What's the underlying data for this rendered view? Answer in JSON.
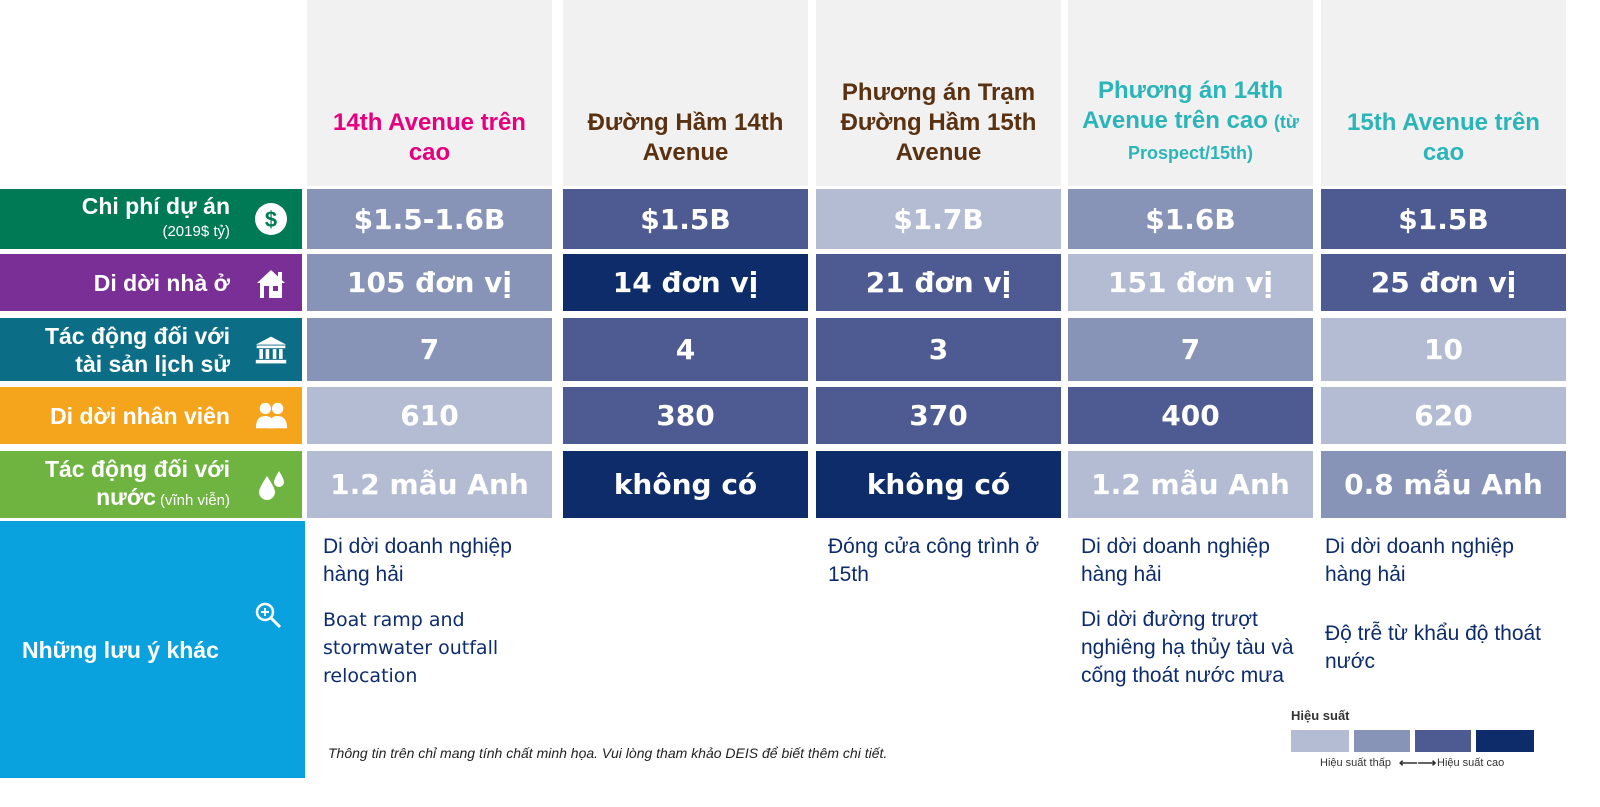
{
  "columns": [
    {
      "title": "14th Avenue trên cao",
      "sub": "",
      "color": "#e6007e"
    },
    {
      "title": "Đường Hầm 14th Avenue",
      "sub": "",
      "color": "#5a3211"
    },
    {
      "title": "Phương án Trạm Đường Hầm 15th Avenue",
      "sub": "",
      "color": "#5a3211"
    },
    {
      "title": "Phương án 14th Avenue trên cao",
      "sub_inline": "(từ",
      "sub": "Prospect/15th)",
      "color": "#2bb5b8"
    },
    {
      "title": "15th Avenue trên cao",
      "sub": "",
      "color": "#2bb5b8"
    }
  ],
  "rows": [
    {
      "label": "Chi phí dự án",
      "sublabel": "(2019$ tỷ)",
      "icon": "dollar-icon",
      "color": "#007a55",
      "values": [
        "$1.5-1.6B",
        "$1.5B",
        "$1.7B",
        "$1.6B",
        "$1.5B"
      ],
      "levels": [
        2,
        3,
        1,
        2,
        3
      ]
    },
    {
      "label": "Di dời nhà ở",
      "sublabel": "",
      "icon": "house-icon",
      "color": "#7a2f97",
      "values": [
        "105 đơn vị",
        "14 đơn vị",
        "21 đơn vị",
        "151 đơn vị",
        "25 đơn vị"
      ],
      "levels": [
        2,
        4,
        3,
        1,
        3
      ]
    },
    {
      "label": "Tác động đối với tài sản lịch sử",
      "sublabel": "",
      "icon": "landmark-icon",
      "color": "#0c6e86",
      "values": [
        "7",
        "4",
        "3",
        "7",
        "10"
      ],
      "levels": [
        2,
        3,
        3,
        2,
        1
      ]
    },
    {
      "label": "Di dời nhân viên",
      "sublabel": "",
      "icon": "people-icon",
      "color": "#f5a51c",
      "values": [
        "610",
        "380",
        "370",
        "400",
        "620"
      ],
      "levels": [
        1,
        3,
        3,
        3,
        1
      ]
    },
    {
      "label": "Tác động đối với nước",
      "sublabel": "(vĩnh viễn)",
      "icon": "water-drops-icon",
      "color": "#6fb440",
      "values": [
        "1.2 mẫu Anh",
        "không có",
        "không có",
        "1.2 mẫu Anh",
        "0.8 mẫu Anh"
      ],
      "levels": [
        1,
        4,
        4,
        1,
        2
      ]
    }
  ],
  "other": {
    "label": "Những lưu ý khác",
    "icon": "magnify-plus-icon",
    "color": "#0aa1df",
    "notes": [
      [
        "Di dời doanh nghiệp hàng hải",
        "Boat ramp and stormwater outfall relocation"
      ],
      [],
      [
        "Đóng cửa công trình ở 15th"
      ],
      [
        "Di dời doanh nghiệp hàng hải",
        "Di dời đường trượt nghiêng hạ thủy tàu và cống thoát nước mưa"
      ],
      [
        "Di dời doanh nghiệp hàng hải",
        "Độ trễ từ khẩu độ thoát nước"
      ]
    ]
  },
  "disclaimer": "Thông tin trên chỉ mang tính chất minh họa. Vui lòng tham khảo DEIS để biết thêm chi tiết.",
  "legend": {
    "title": "Hiệu suất",
    "low": "Hiệu suất thấp",
    "high": "Hiệu suất cao",
    "arrow": "⟵⟶",
    "colors": [
      "#b3bcd3",
      "#8893b8",
      "#4e5b92",
      "#0e2c69"
    ]
  }
}
